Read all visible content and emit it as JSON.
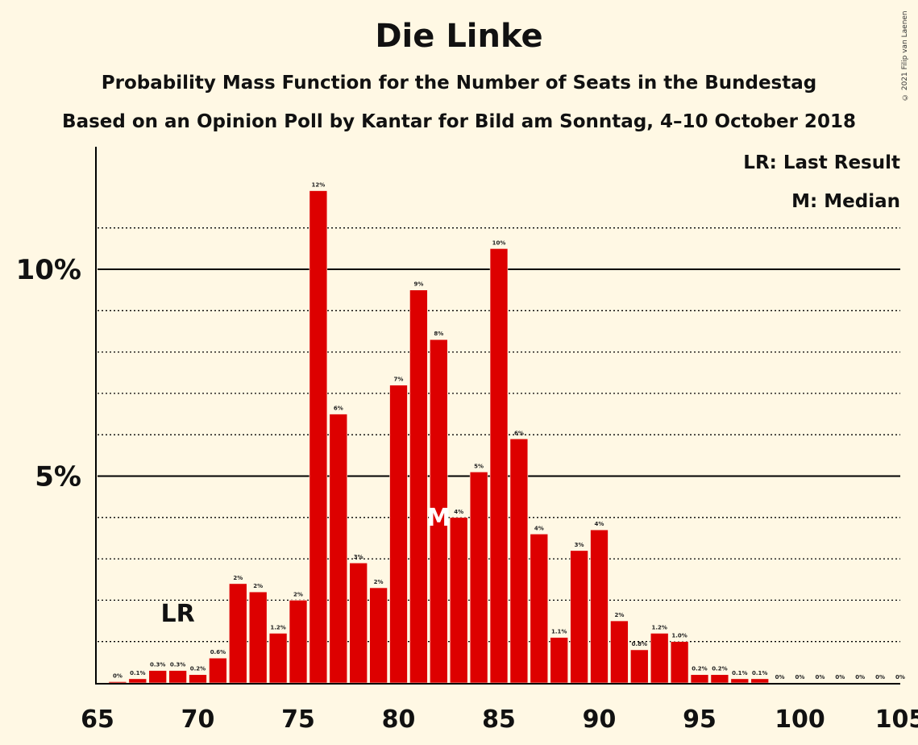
{
  "chart_data": {
    "type": "bar",
    "title": "Die Linke",
    "subtitle_1": "Probability Mass Function for the Number of Seats in the Bundestag",
    "subtitle_2": "Based on an Opinion Poll by Kantar for Bild am Sonntag, 4–10 October 2018",
    "copyright": "© 2021 Filip van Laenen",
    "legend": {
      "lr": "LR: Last Result",
      "m": "M: Median",
      "placement": "top-right"
    },
    "markers": {
      "last_result_seat": 69,
      "last_result_label": "LR",
      "median_seat": 82,
      "median_label": "M"
    },
    "x": [
      66,
      67,
      68,
      69,
      70,
      71,
      72,
      73,
      74,
      75,
      76,
      77,
      78,
      79,
      80,
      81,
      82,
      83,
      84,
      85,
      86,
      87,
      88,
      89,
      90,
      91,
      92,
      93,
      94,
      95,
      96,
      97,
      98,
      99,
      100,
      101,
      102,
      103,
      104,
      105
    ],
    "values": [
      0.03,
      0.1,
      0.3,
      0.3,
      0.2,
      0.6,
      2.4,
      2.2,
      1.2,
      2.0,
      11.9,
      6.5,
      2.9,
      2.3,
      7.2,
      9.5,
      8.3,
      4.0,
      5.1,
      10.5,
      5.9,
      3.6,
      1.1,
      3.2,
      3.7,
      1.5,
      0.8,
      1.2,
      1.0,
      0.2,
      0.2,
      0.1,
      0.1,
      0.0,
      0.0,
      0.0,
      0.0,
      0.0,
      0.0,
      0.0
    ],
    "labels": [
      "0%",
      "0.1%",
      "0.3%",
      "0.3%",
      "0.2%",
      "0.6%",
      "2%",
      "2%",
      "1.2%",
      "2%",
      "12%",
      "6%",
      "3%",
      "2%",
      "7%",
      "9%",
      "8%",
      "4%",
      "5%",
      "10%",
      "6%",
      "4%",
      "1.1%",
      "3%",
      "4%",
      "2%",
      "0.8%",
      "1.2%",
      "1.0%",
      "0.2%",
      "0.2%",
      "0.1%",
      "0.1%",
      "0%",
      "0%",
      "0%",
      "0%",
      "0%",
      "0%",
      "0%"
    ],
    "zero_label_66": "0%",
    "xticks": [
      65,
      70,
      75,
      80,
      85,
      90,
      95,
      100,
      105
    ],
    "xtick_labels": [
      "65",
      "70",
      "75",
      "80",
      "85",
      "90",
      "95",
      "100",
      "105"
    ],
    "yticks_major": [
      5,
      10
    ],
    "ytick_labels": [
      "5%",
      "10%"
    ],
    "yticks_minor": [
      1,
      2,
      3,
      4,
      6,
      7,
      8,
      9,
      11
    ],
    "xlim": [
      65,
      105
    ],
    "ylim": [
      0,
      13
    ],
    "bar_color": "#DD0000",
    "background": "#FFF8E4",
    "grid": true
  }
}
